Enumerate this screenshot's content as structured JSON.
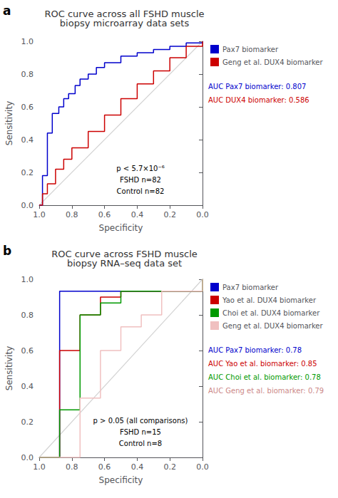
{
  "chart_data": [
    {
      "type": "step",
      "panel_label": "a",
      "title": "ROC curve across all FSHD muscle\nbiopsy microarray data sets",
      "x_label": "Specificity",
      "y_label": "Sensitivity",
      "xlim": [
        1.0,
        0.0
      ],
      "ylim": [
        0.0,
        1.0
      ],
      "xticks": [
        {
          "value": 1.0,
          "label": "1.0"
        },
        0.8,
        0.6,
        0.4,
        0.2,
        {
          "value": 0.0,
          "label": "0.0"
        }
      ],
      "yticks": [
        {
          "value": 0.0,
          "label": "0.0"
        },
        0.2,
        0.4,
        0.6,
        0.8,
        {
          "value": 1.0,
          "label": "1.0"
        }
      ],
      "grid": false,
      "legend": "right",
      "series": [
        {
          "name": "Pax7 biomarker",
          "color": "#0000cc",
          "x": [
            1,
            0.98,
            0.95,
            0.92,
            0.88,
            0.85,
            0.82,
            0.78,
            0.75,
            0.7,
            0.65,
            0.6,
            0.5,
            0.4,
            0.3,
            0.2,
            0.1,
            0
          ],
          "values": [
            0,
            0.18,
            0.44,
            0.56,
            0.6,
            0.65,
            0.68,
            0.73,
            0.77,
            0.8,
            0.84,
            0.87,
            0.91,
            0.93,
            0.95,
            0.97,
            0.99,
            1.0
          ]
        },
        {
          "name": "Geng et al. DUX4 biomarker",
          "color": "#cc0000",
          "x": [
            1,
            0.98,
            0.95,
            0.9,
            0.85,
            0.8,
            0.7,
            0.6,
            0.5,
            0.4,
            0.3,
            0.2,
            0.1,
            0
          ],
          "values": [
            0,
            0.07,
            0.13,
            0.22,
            0.28,
            0.35,
            0.45,
            0.55,
            0.65,
            0.74,
            0.82,
            0.9,
            0.97,
            1.0
          ]
        }
      ],
      "annotations": [
        {
          "text": "AUC Pax7 biomarker: 0.807",
          "color": "#0000cc"
        },
        {
          "text": "AUC DUX4 biomarker: 0.586",
          "color": "#cc0000"
        }
      ],
      "annotation_lines": [
        "p < 5.7×10⁻⁶",
        "FSHD n=82",
        "Control n=82"
      ]
    },
    {
      "type": "step",
      "panel_label": "b",
      "title": "ROC curve across FSHD muscle\nbiopsy RNA–seq data set",
      "x_label": "Specificity",
      "y_label": "Sensitivity",
      "xlim": [
        1.0,
        0.0
      ],
      "ylim": [
        0.0,
        1.0
      ],
      "xticks": [
        {
          "value": 1.0,
          "label": "1.0"
        },
        0.8,
        0.6,
        0.4,
        0.2,
        {
          "value": 0.0,
          "label": "0.0"
        }
      ],
      "yticks": [
        {
          "value": 0.0,
          "label": "0.0"
        },
        0.2,
        0.4,
        0.6,
        0.8,
        {
          "value": 1.0,
          "label": "1.0"
        }
      ],
      "grid": false,
      "legend": "right",
      "series": [
        {
          "name": "Pax7 biomarker",
          "color": "#0000cc",
          "x": [
            1,
            0.875,
            0.875,
            0
          ],
          "values": [
            0,
            0.2667,
            0.9333,
            1.0
          ]
        },
        {
          "name": "Yao et al. DUX4 biomarker",
          "color": "#cc0000",
          "x": [
            1,
            0.875,
            0.75,
            0.625,
            0.5,
            0
          ],
          "values": [
            0,
            0.6,
            0.8,
            0.9,
            0.9333,
            1.0
          ]
        },
        {
          "name": "Choi et al. DUX4 biomarker",
          "color": "#009900",
          "x": [
            1,
            0.875,
            0.75,
            0.625,
            0.5,
            0.375,
            0
          ],
          "values": [
            0,
            0.2667,
            0.8,
            0.8667,
            0.9333,
            0.9333,
            1.0
          ]
        },
        {
          "name": "Geng et al. DUX4 biomarker",
          "color": "#f0c0c0",
          "x": [
            1,
            0.75,
            0.625,
            0.5,
            0.375,
            0.25,
            0.125,
            0
          ],
          "values": [
            0,
            0.3333,
            0.6,
            0.7333,
            0.8,
            0.9333,
            0.9333,
            1.0
          ]
        }
      ],
      "annotations": [
        {
          "text": "AUC Pax7 biomarker: 0.78",
          "color": "#0000cc"
        },
        {
          "text": "AUC Yao et al. biomarker: 0.85",
          "color": "#cc0000"
        },
        {
          "text": "AUC Choi et al. biomarker: 0.78",
          "color": "#009900"
        },
        {
          "text": "AUC Geng et al. biomarker: 0.79",
          "color": "#cc8888"
        }
      ],
      "annotation_lines": [
        "p > 0.05 (all comparisons)",
        "FSHD n=15",
        "Control n=8"
      ]
    }
  ]
}
